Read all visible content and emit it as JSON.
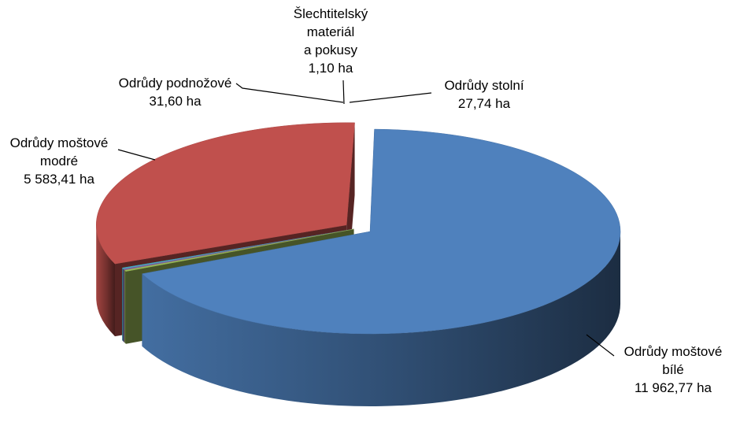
{
  "chart_data": {
    "type": "pie",
    "title": "",
    "legend": "none",
    "unit": "ha",
    "slices": [
      {
        "name": "Odrůdy moštové bílé",
        "label_lines": [
          "Odrůdy moštové",
          "bílé",
          "11 962,77 ha"
        ],
        "value": 11962.77,
        "color": "#4f81bd"
      },
      {
        "name": "Odrůdy stolní",
        "label_lines": [
          "Odrůdy stolní",
          "27,74 ha"
        ],
        "value": 27.74,
        "color": "#9bbb59"
      },
      {
        "name": "Šlechtitelský materiál a pokusy",
        "label_lines": [
          "Šlechtitelský",
          "materiál",
          "a pokusy",
          "1,10 ha"
        ],
        "value": 1.1,
        "color": "#8064a2"
      },
      {
        "name": "Odrůdy podnožové",
        "label_lines": [
          "Odrůdy podnožové",
          "31,60 ha"
        ],
        "value": 31.6,
        "color": "#4bacc6"
      },
      {
        "name": "Odrůdy moštové modré",
        "label_lines": [
          "Odrůdy moštové",
          "modré",
          "5 583,41 ha"
        ],
        "value": 5583.41,
        "color": "#c0504d"
      }
    ]
  }
}
